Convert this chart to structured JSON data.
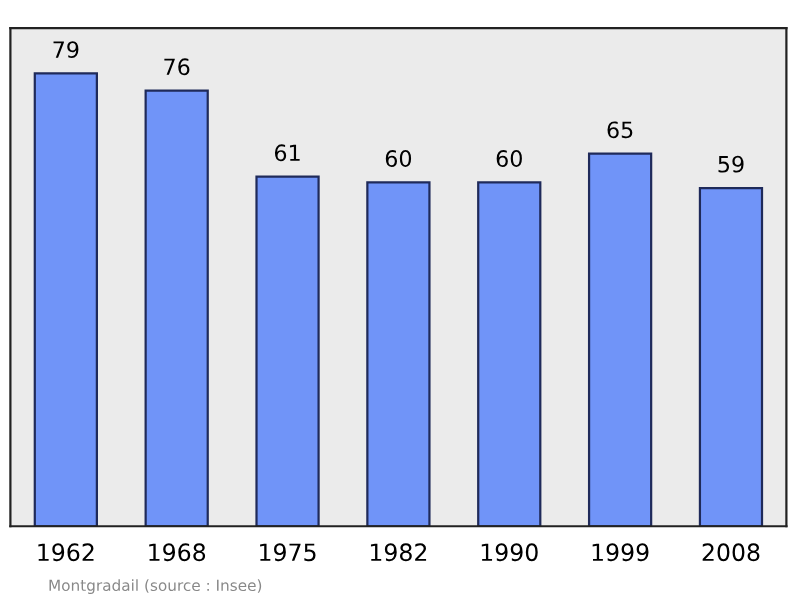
{
  "chart_data": {
    "type": "bar",
    "categories": [
      "1962",
      "1968",
      "1975",
      "1982",
      "1990",
      "1999",
      "2008"
    ],
    "values": [
      79,
      76,
      61,
      60,
      60,
      65,
      59
    ],
    "color": "#7094f8",
    "data_labels": true,
    "grid": false,
    "legend": false,
    "annotations": [
      "Montgradail",
      "(source : Insee)"
    ]
  }
}
